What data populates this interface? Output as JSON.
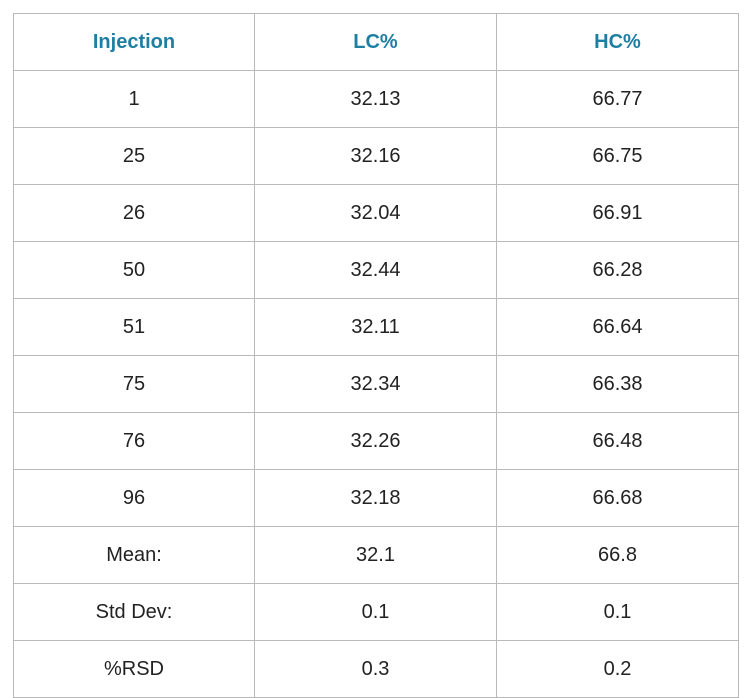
{
  "colors": {
    "header_text": "#1e7fa3",
    "body_text": "#222222",
    "grid_line": "#b9b9b9"
  },
  "table": {
    "headers": [
      "Injection",
      "LC%",
      "HC%"
    ],
    "rows": [
      [
        "1",
        "32.13",
        "66.77"
      ],
      [
        "25",
        "32.16",
        "66.75"
      ],
      [
        "26",
        "32.04",
        "66.91"
      ],
      [
        "50",
        "32.44",
        "66.28"
      ],
      [
        "51",
        "32.11",
        "66.64"
      ],
      [
        "75",
        "32.34",
        "66.38"
      ],
      [
        "76",
        "32.26",
        "66.48"
      ],
      [
        "96",
        "32.18",
        "66.68"
      ],
      [
        "Mean:",
        "32.1",
        "66.8"
      ],
      [
        "Std Dev:",
        "0.1",
        "0.1"
      ],
      [
        "%RSD",
        "0.3",
        "0.2"
      ]
    ]
  }
}
